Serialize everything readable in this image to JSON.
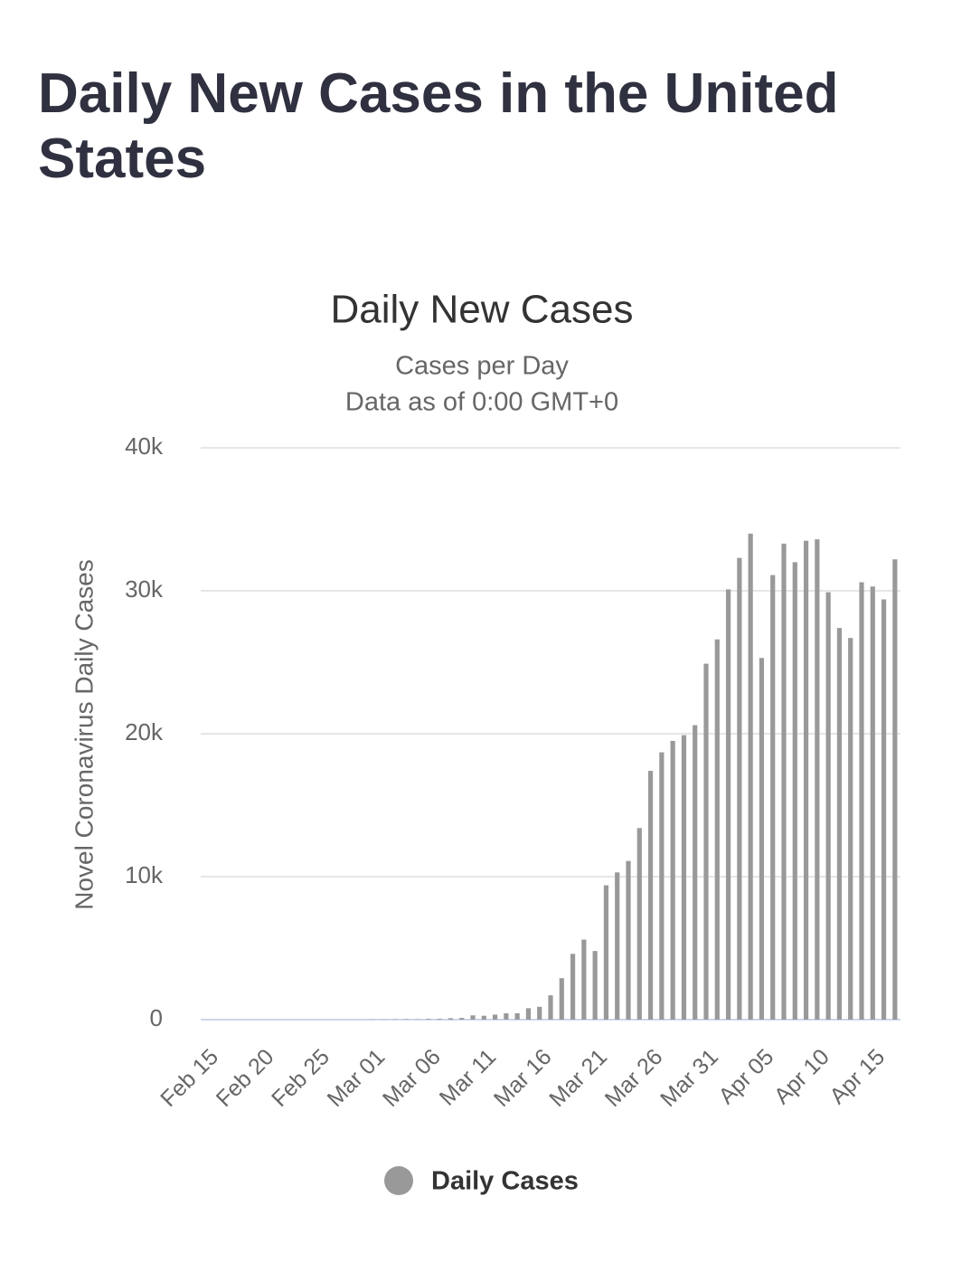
{
  "page_title": "Daily New Cases in the United States",
  "chart_data": {
    "type": "bar",
    "title": "Daily New Cases",
    "subtitle": [
      "Cases per Day",
      "Data as of 0:00 GMT+0"
    ],
    "y_label": "Novel Coronavirus Daily Cases",
    "categories": [
      "Feb 15",
      null,
      null,
      null,
      null,
      "Feb 20",
      null,
      null,
      null,
      null,
      "Feb 25",
      null,
      null,
      null,
      null,
      "Mar 01",
      null,
      null,
      null,
      null,
      "Mar 06",
      null,
      null,
      null,
      null,
      "Mar 11",
      null,
      null,
      null,
      null,
      "Mar 16",
      null,
      null,
      null,
      null,
      "Mar 21",
      null,
      null,
      null,
      null,
      "Mar 26",
      null,
      null,
      null,
      null,
      "Mar 31",
      null,
      null,
      null,
      null,
      "Apr 05",
      null,
      null,
      null,
      null,
      "Apr 10",
      null,
      null,
      null,
      null,
      "Apr 15",
      null,
      null
    ],
    "series": [
      {
        "name": "Daily Cases",
        "color": "#999999",
        "values": [
          0,
          0,
          0,
          0,
          0,
          0,
          0,
          0,
          0,
          0,
          0,
          0,
          0,
          0,
          0,
          10,
          10,
          20,
          30,
          20,
          50,
          60,
          100,
          120,
          300,
          270,
          350,
          440,
          450,
          800,
          900,
          1700,
          2900,
          4600,
          5600,
          4800,
          9400,
          10300,
          11100,
          13400,
          17400,
          18700,
          19500,
          19900,
          20600,
          24900,
          26600,
          30100,
          32300,
          34000,
          25300,
          31100,
          33300,
          32000,
          33500,
          33600,
          29900,
          27400,
          26700,
          30600,
          30300,
          29400,
          32200
        ]
      }
    ],
    "ylim": [
      0,
      40000
    ],
    "yticks": [
      0,
      {
        "value": 10000,
        "label": "10k"
      },
      {
        "value": 20000,
        "label": "20k"
      },
      {
        "value": 30000,
        "label": "30k"
      },
      {
        "value": 40000,
        "label": "40k"
      }
    ],
    "grid": true,
    "legend": "bottom"
  }
}
